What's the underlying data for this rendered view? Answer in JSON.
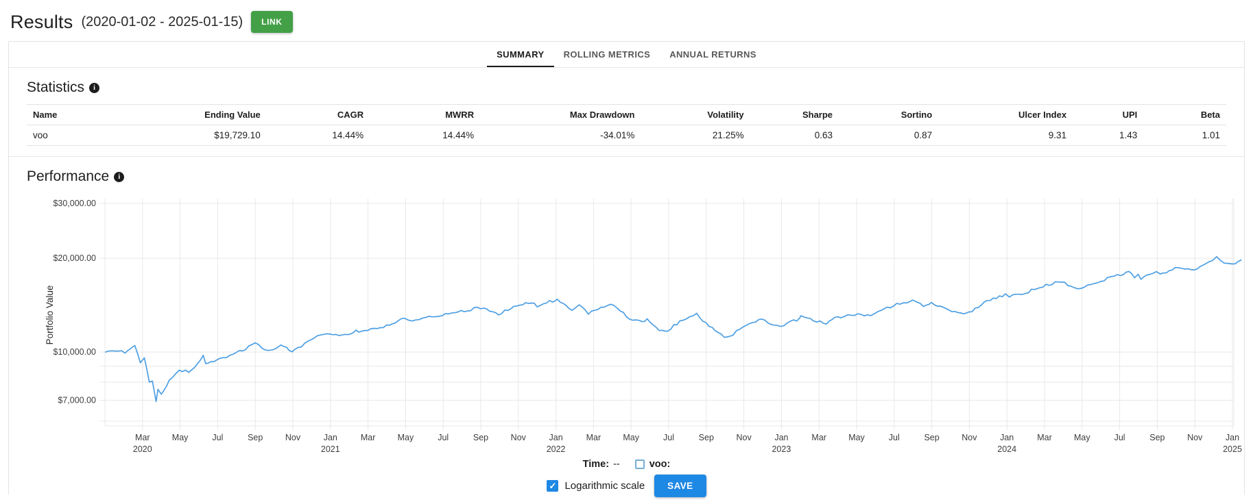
{
  "header": {
    "title": "Results",
    "date_range": "(2020-01-02 - 2025-01-15)",
    "link_button": "LINK"
  },
  "tabs": [
    {
      "label": "SUMMARY",
      "active": true
    },
    {
      "label": "ROLLING METRICS",
      "active": false
    },
    {
      "label": "ANNUAL RETURNS",
      "active": false
    }
  ],
  "statistics": {
    "heading": "Statistics",
    "columns": [
      "Name",
      "Ending Value",
      "CAGR",
      "MWRR",
      "Max Drawdown",
      "Volatility",
      "Sharpe",
      "Sortino",
      "Ulcer Index",
      "UPI",
      "Beta"
    ],
    "rows": [
      [
        "voo",
        "$19,729.10",
        "14.44%",
        "14.44%",
        "-34.01%",
        "21.25%",
        "0.63",
        "0.87",
        "9.31",
        "1.43",
        "1.01"
      ]
    ]
  },
  "performance": {
    "heading": "Performance"
  },
  "chart_data": {
    "type": "line",
    "title": "Performance",
    "xlabel": "",
    "ylabel": "Portfolio Value",
    "y_scale": "log",
    "grid": true,
    "ylim": [
      5800,
      31000
    ],
    "y_ticks": [
      {
        "label": "$30,000.00",
        "value": 30000
      },
      {
        "label": "$20,000.00",
        "value": 20000
      },
      {
        "label": "$10,000.00",
        "value": 10000
      },
      {
        "label": "$7,000.00",
        "value": 7000
      }
    ],
    "y_minor_gridlines": [
      9000,
      8000,
      6000
    ],
    "x_ticks": [
      {
        "month": "Mar",
        "year": "2020"
      },
      {
        "month": "May"
      },
      {
        "month": "Jul"
      },
      {
        "month": "Sep"
      },
      {
        "month": "Nov"
      },
      {
        "month": "Jan",
        "year": "2021"
      },
      {
        "month": "Mar"
      },
      {
        "month": "May"
      },
      {
        "month": "Jul"
      },
      {
        "month": "Sep"
      },
      {
        "month": "Nov"
      },
      {
        "month": "Jan",
        "year": "2022"
      },
      {
        "month": "Mar"
      },
      {
        "month": "May"
      },
      {
        "month": "Jul"
      },
      {
        "month": "Sep"
      },
      {
        "month": "Nov"
      },
      {
        "month": "Jan",
        "year": "2023"
      },
      {
        "month": "Mar"
      },
      {
        "month": "May"
      },
      {
        "month": "Jul"
      },
      {
        "month": "Sep"
      },
      {
        "month": "Nov"
      },
      {
        "month": "Jan",
        "year": "2024"
      },
      {
        "month": "Mar"
      },
      {
        "month": "May"
      },
      {
        "month": "Jul"
      },
      {
        "month": "Sep"
      },
      {
        "month": "Nov"
      },
      {
        "month": "Jan",
        "year": "2025"
      }
    ],
    "series": [
      {
        "name": "voo",
        "color": "#4d9fe3",
        "points": [
          [
            "2020-01-02",
            10000
          ],
          [
            "2020-01-17",
            10090
          ],
          [
            "2020-02-03",
            9960
          ],
          [
            "2020-02-19",
            10460
          ],
          [
            "2020-02-28",
            9170
          ],
          [
            "2020-03-04",
            9610
          ],
          [
            "2020-03-12",
            7960
          ],
          [
            "2020-03-17",
            8050
          ],
          [
            "2020-03-23",
            6900
          ],
          [
            "2020-03-26",
            7620
          ],
          [
            "2020-04-01",
            7290
          ],
          [
            "2020-04-14",
            8090
          ],
          [
            "2020-04-30",
            8780
          ],
          [
            "2020-05-15",
            8620
          ],
          [
            "2020-05-29",
            9200
          ],
          [
            "2020-06-08",
            9790
          ],
          [
            "2020-06-12",
            9260
          ],
          [
            "2020-06-30",
            9380
          ],
          [
            "2020-07-31",
            9910
          ],
          [
            "2020-08-31",
            10620
          ],
          [
            "2020-09-23",
            10060
          ],
          [
            "2020-09-30",
            10220
          ],
          [
            "2020-10-12",
            10610
          ],
          [
            "2020-10-30",
            9950
          ],
          [
            "2020-11-30",
            11040
          ],
          [
            "2020-12-31",
            11450
          ],
          [
            "2021-01-29",
            11330
          ],
          [
            "2021-02-12",
            11720
          ],
          [
            "2021-02-26",
            11640
          ],
          [
            "2021-03-31",
            12150
          ],
          [
            "2021-04-30",
            12800
          ],
          [
            "2021-05-12",
            12550
          ],
          [
            "2021-05-28",
            12890
          ],
          [
            "2021-06-30",
            13180
          ],
          [
            "2021-07-30",
            13500
          ],
          [
            "2021-08-31",
            13900
          ],
          [
            "2021-09-30",
            13250
          ],
          [
            "2021-10-29",
            14180
          ],
          [
            "2021-11-22",
            14400
          ],
          [
            "2021-12-01",
            14080
          ],
          [
            "2021-12-31",
            14710
          ],
          [
            "2022-01-03",
            14800
          ],
          [
            "2022-01-27",
            13700
          ],
          [
            "2022-02-08",
            14080
          ],
          [
            "2022-02-23",
            13350
          ],
          [
            "2022-03-29",
            14330
          ],
          [
            "2022-04-29",
            12820
          ],
          [
            "2022-05-19",
            12450
          ],
          [
            "2022-05-27",
            12840
          ],
          [
            "2022-06-16",
            11680
          ],
          [
            "2022-06-30",
            11780
          ],
          [
            "2022-07-29",
            12870
          ],
          [
            "2022-08-16",
            13290
          ],
          [
            "2022-08-31",
            12340
          ],
          [
            "2022-09-30",
            11210
          ],
          [
            "2022-10-14",
            11420
          ],
          [
            "2022-10-31",
            12120
          ],
          [
            "2022-11-30",
            12800
          ],
          [
            "2022-12-19",
            12170
          ],
          [
            "2022-12-30",
            12060
          ],
          [
            "2023-01-31",
            12820
          ],
          [
            "2023-02-02",
            13080
          ],
          [
            "2023-02-28",
            12510
          ],
          [
            "2023-03-13",
            12380
          ],
          [
            "2023-03-31",
            12970
          ],
          [
            "2023-04-28",
            13170
          ],
          [
            "2023-05-24",
            13040
          ],
          [
            "2023-05-31",
            13230
          ],
          [
            "2023-06-30",
            14100
          ],
          [
            "2023-07-27",
            14620
          ],
          [
            "2023-07-31",
            14550
          ],
          [
            "2023-08-18",
            14130
          ],
          [
            "2023-08-31",
            14320
          ],
          [
            "2023-09-29",
            13640
          ],
          [
            "2023-10-27",
            13270
          ],
          [
            "2023-10-31",
            13350
          ],
          [
            "2023-11-30",
            14570
          ],
          [
            "2023-12-29",
            15230
          ],
          [
            "2024-01-05",
            15100
          ],
          [
            "2024-01-31",
            15490
          ],
          [
            "2024-02-29",
            16310
          ],
          [
            "2024-03-28",
            16840
          ],
          [
            "2024-04-19",
            15970
          ],
          [
            "2024-04-30",
            16150
          ],
          [
            "2024-05-31",
            16950
          ],
          [
            "2024-06-28",
            17560
          ],
          [
            "2024-07-16",
            18010
          ],
          [
            "2024-07-25",
            17370
          ],
          [
            "2024-07-31",
            17770
          ],
          [
            "2024-08-05",
            17130
          ],
          [
            "2024-08-30",
            18200
          ],
          [
            "2024-09-06",
            17720
          ],
          [
            "2024-09-30",
            18590
          ],
          [
            "2024-10-31",
            18420
          ],
          [
            "2024-11-29",
            19800
          ],
          [
            "2024-12-06",
            20050
          ],
          [
            "2024-12-18",
            19200
          ],
          [
            "2024-12-31",
            19350
          ],
          [
            "2025-01-02",
            19100
          ],
          [
            "2025-01-10",
            19650
          ],
          [
            "2025-01-15",
            19729.1
          ]
        ]
      }
    ],
    "legend_position": "none"
  },
  "controls": {
    "time_label": "Time:",
    "time_value": "--",
    "series_checkbox_label": "voo:",
    "series_checkbox_checked": false,
    "log_checkbox_label": "Logarithmic scale",
    "log_checkbox_checked": true,
    "check_glyph": "✓",
    "save_button": "SAVE"
  },
  "colors": {
    "accent_blue": "#1e88e5",
    "link_green": "#43a047",
    "series_line": "#4d9fe3",
    "gridline": "#e8e8e8",
    "border": "#e3e3e3"
  }
}
